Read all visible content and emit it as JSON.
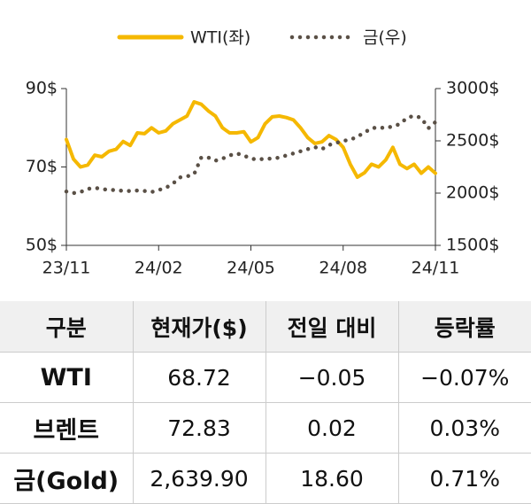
{
  "chart_data": {
    "type": "line",
    "categories": [
      "23/11",
      null,
      null,
      null,
      null,
      null,
      null,
      null,
      null,
      null,
      null,
      null,
      null,
      "24/02",
      null,
      null,
      null,
      null,
      null,
      null,
      null,
      null,
      null,
      null,
      null,
      null,
      "24/05",
      null,
      null,
      null,
      null,
      null,
      null,
      null,
      null,
      null,
      null,
      null,
      null,
      "24/08",
      null,
      null,
      null,
      null,
      null,
      null,
      null,
      null,
      null,
      null,
      null,
      null,
      "24/11"
    ],
    "series": [
      {
        "name": "WTI(좌)",
        "color": "#f5b800",
        "axis": "y",
        "values": [
          77,
          72,
          70,
          70.5,
          73,
          72.6,
          74,
          74.5,
          76.5,
          75.5,
          78.7,
          78.5,
          80,
          78.7,
          79.2,
          81,
          82,
          83,
          86.6,
          86,
          84.3,
          83,
          80,
          78.7,
          78.7,
          79,
          76.4,
          77.5,
          81,
          82.8,
          83,
          82.6,
          82,
          80,
          77.5,
          76,
          76.4,
          78,
          77,
          75,
          70.7,
          67.4,
          68.5,
          70.7,
          70,
          71.8,
          75,
          70.7,
          69.6,
          70.7,
          68.4,
          70,
          68.4
        ]
      },
      {
        "name": "금(우)",
        "color": "#5a5046",
        "axis": "y2",
        "values": [
          2015,
          2000,
          2010,
          2040,
          2050,
          2040,
          2030,
          2030,
          2020,
          2020,
          2025,
          2020,
          2010,
          2030,
          2050,
          2090,
          2150,
          2160,
          2180,
          2340,
          2340,
          2310,
          2330,
          2360,
          2380,
          2360,
          2330,
          2320,
          2330,
          2330,
          2340,
          2360,
          2380,
          2400,
          2420,
          2440,
          2420,
          2460,
          2480,
          2500,
          2510,
          2540,
          2580,
          2620,
          2630,
          2620,
          2640,
          2660,
          2720,
          2740,
          2720,
          2620,
          2680
        ]
      }
    ],
    "ylim": [
      50,
      90
    ],
    "yticks": [
      {
        "value": 50,
        "label": "50$"
      },
      {
        "value": 70,
        "label": "70$"
      },
      {
        "value": 90,
        "label": "90$"
      }
    ],
    "y2lim": [
      1500,
      3000
    ],
    "y2ticks": [
      {
        "value": 1500,
        "label": "1500$"
      },
      {
        "value": 2000,
        "label": "2000$"
      },
      {
        "value": 2500,
        "label": "2500$"
      },
      {
        "value": 3000,
        "label": "3000$"
      }
    ],
    "legend": "top"
  },
  "table": {
    "header": [
      "구분",
      "현재가($)",
      "전일 대비",
      "등락률"
    ],
    "rows": [
      [
        "WTI",
        "68.72",
        "−0.05",
        "−0.07%"
      ],
      [
        "브렌트",
        "72.83",
        "0.02",
        "0.03%"
      ],
      [
        "금(Gold)",
        "2,639.90",
        "18.60",
        "0.71%"
      ]
    ]
  }
}
